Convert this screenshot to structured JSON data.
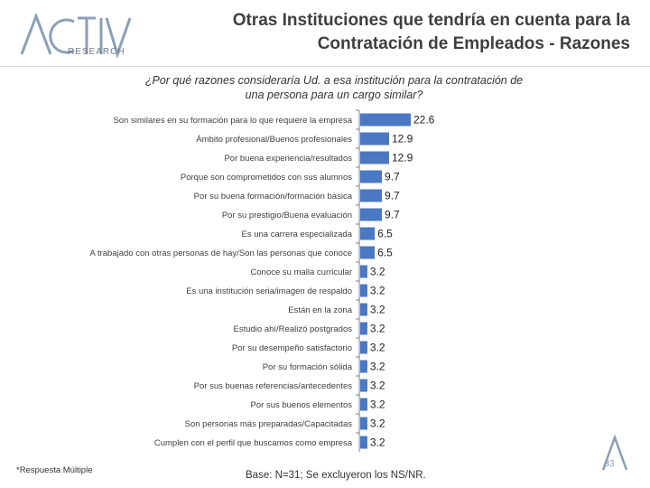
{
  "header": {
    "logo_text": "RESEARCH",
    "title_line1": "Otras Instituciones que tendría en cuenta para la",
    "title_line2": "Contratación de Empleados - Razones"
  },
  "question": {
    "line1": "¿Por qué razones consideraría Ud. a esa institución para la contratación de",
    "line2": "una persona para un cargo similar?"
  },
  "chart_data": {
    "type": "bar",
    "orientation": "horizontal",
    "title": "",
    "bar_color": "#4a78c2",
    "categories": [
      "Son similares en su formación para lo que requiere la empresa",
      "Ámbito profesional/Buenos profesionales",
      "Por buena experiencia/resultados",
      "Porque son comprometidos con sus alumnos",
      "Por su buena formación/formación básica",
      "Por su prestigio/Buena evaluación",
      "Es una carrera especializada",
      "A trabajado con otras personas de hay/Son las personas que conoce",
      "Conoce su malla curricular",
      "Es una institución seria/imagen de respaldo",
      "Están en la zona",
      "Estudio ahí/Realizó postgrados",
      "Por su desempeño satisfactorio",
      "Por su formación sólida",
      "Por sus buenas referencias/antecedentes",
      "Por sus buenos elementos",
      "Son personas más preparadas/Capacitadas",
      "Cumplen con el perfil que buscamos como empresa"
    ],
    "values": [
      22.6,
      12.9,
      12.9,
      9.7,
      9.7,
      9.7,
      6.5,
      6.5,
      3.2,
      3.2,
      3.2,
      3.2,
      3.2,
      3.2,
      3.2,
      3.2,
      3.2,
      3.2
    ],
    "value_labels": [
      "22.6",
      "12.9",
      "12.9",
      "9.7",
      "9.7",
      "9.7",
      "6.5",
      "6.5",
      "3.2",
      "3.2",
      "3.2",
      "3.2",
      "3.2",
      "3.2",
      "3.2",
      "3.2",
      "3.2",
      "3.2"
    ],
    "xlim": [
      0,
      25
    ]
  },
  "footer": {
    "note": "*Respuesta Múltiple",
    "base": "Base: N=31; Se excluyeron los NS/NR.",
    "page": "33"
  }
}
